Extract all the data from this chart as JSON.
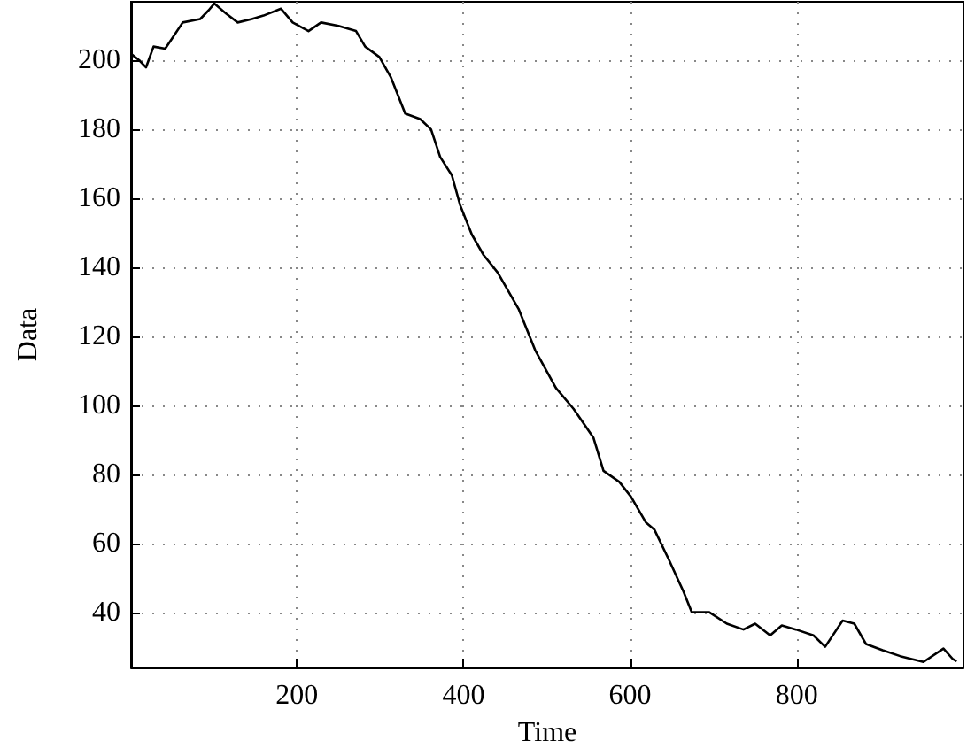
{
  "chart_data": {
    "type": "line",
    "xlabel": "Time",
    "ylabel": "Data",
    "xlim": [
      1,
      1000
    ],
    "ylim": [
      24,
      217
    ],
    "xticks": [
      200,
      400,
      600,
      800
    ],
    "yticks": [
      40,
      60,
      80,
      100,
      120,
      140,
      160,
      180,
      200
    ],
    "grid": true,
    "marker": "none",
    "line_style": "solid",
    "series": [
      {
        "color": "#000000",
        "x": [
          2,
          11,
          19,
          28,
          42,
          52,
          63,
          84,
          94,
          101,
          115,
          129,
          146,
          160,
          181,
          195,
          214,
          229,
          250,
          271,
          282,
          299,
          313,
          330,
          348,
          361,
          372,
          386,
          396,
          410,
          424,
          441,
          466,
          486,
          511,
          532,
          556,
          568,
          587,
          601,
          619,
          629,
          646,
          664,
          674,
          695,
          716,
          736,
          750,
          768,
          782,
          799,
          820,
          834,
          855,
          869,
          883,
          903,
          924,
          952,
          976,
          987,
          992
        ],
        "values": [
          201.7,
          200,
          198,
          204,
          203.4,
          207,
          211,
          212,
          214.5,
          216.5,
          213.6,
          211,
          212,
          213,
          215,
          211,
          208.5,
          211,
          210,
          208.5,
          204,
          201,
          195,
          184.6,
          183,
          180,
          172,
          166.7,
          158,
          149.5,
          143.6,
          138.5,
          128,
          116,
          105,
          99,
          90.6,
          81,
          77.8,
          73.5,
          66,
          64,
          55.5,
          46,
          40,
          40,
          36.7,
          35,
          36.7,
          33.3,
          36.2,
          35,
          33.3,
          30,
          37.6,
          36.7,
          30.8,
          29,
          27.3,
          25.6,
          29.5,
          26.5,
          25.8
        ]
      }
    ]
  }
}
